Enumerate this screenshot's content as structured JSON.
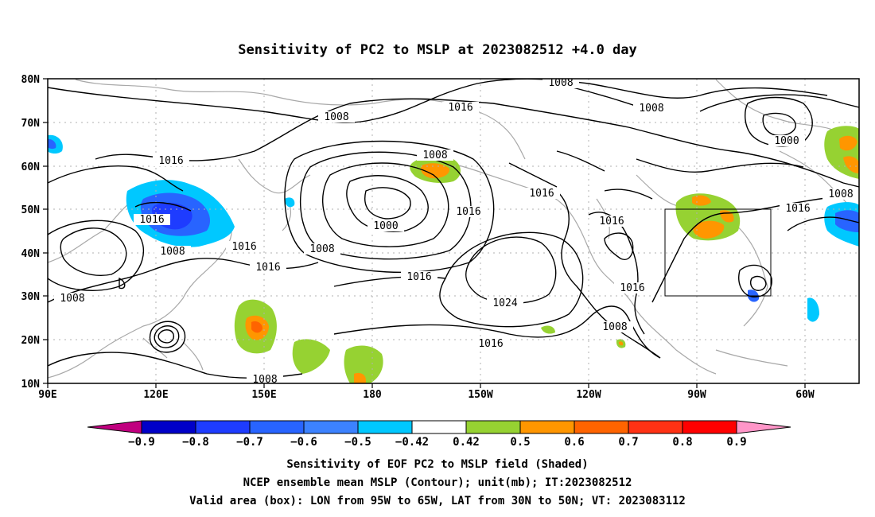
{
  "title": "Sensitivity of PC2 to MSLP at 2023082512 +4.0 day",
  "lat_labels": [
    "80N",
    "70N",
    "60N",
    "50N",
    "40N",
    "30N",
    "20N",
    "10N"
  ],
  "lon_labels": [
    "90E",
    "120E",
    "150E",
    "180",
    "150W",
    "120W",
    "90W",
    "60W"
  ],
  "contour_labels": {
    "c1008": "1008",
    "c1016": "1016",
    "c1000": "1000",
    "c1024": "1024"
  },
  "colorbar": {
    "labels": [
      "-0.9",
      "-0.8",
      "-0.7",
      "-0.6",
      "-0.5",
      "-0.42",
      "0.42",
      "0.5",
      "0.6",
      "0.7",
      "0.8",
      "0.9"
    ],
    "colors": [
      "#c0007f",
      "#0000c8",
      "#1e3cff",
      "#2864ff",
      "#3c82ff",
      "#00c8ff",
      "#ffffff",
      "#96d232",
      "#ff9600",
      "#ff6400",
      "#ff3214",
      "#ff0000",
      "#ff96c8"
    ]
  },
  "valid_box": {
    "lon_range": [
      "95W",
      "65W"
    ],
    "lat_range": [
      "30N",
      "50N"
    ]
  },
  "captions": [
    "Sensitivity of EOF PC2 to MSLP field (Shaded)",
    "NCEP ensemble mean MSLP (Contour); unit(mb); IT:2023082512",
    "Valid area (box): LON from 95W to 65W, LAT from 30N to 50N; VT: 2023083112"
  ]
}
